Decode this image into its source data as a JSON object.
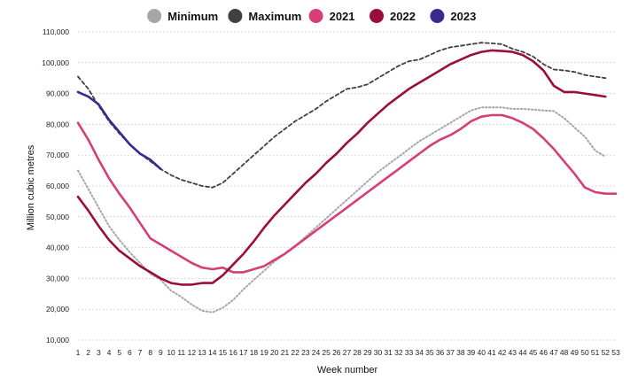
{
  "chart_data": {
    "type": "line",
    "xlabel": "Week number",
    "ylabel": "Million cubic metres",
    "ylim": [
      10000,
      110000
    ],
    "yticks": [
      10000,
      20000,
      30000,
      40000,
      50000,
      60000,
      70000,
      80000,
      90000,
      100000,
      110000
    ],
    "ytick_labels": [
      "10,000",
      "20,000",
      "30,000",
      "40,000",
      "50,000",
      "60,000",
      "70,000",
      "80,000",
      "90,000",
      "100,000",
      "110,000"
    ],
    "xlim": [
      1,
      53
    ],
    "x": [
      1,
      2,
      3,
      4,
      5,
      6,
      7,
      8,
      9,
      10,
      11,
      12,
      13,
      14,
      15,
      16,
      17,
      18,
      19,
      20,
      21,
      22,
      23,
      24,
      25,
      26,
      27,
      28,
      29,
      30,
      31,
      32,
      33,
      34,
      35,
      36,
      37,
      38,
      39,
      40,
      41,
      42,
      43,
      44,
      45,
      46,
      47,
      48,
      49,
      50,
      51,
      52,
      53
    ],
    "grid": "horizontal dashed",
    "legend_position": "top-center",
    "series": [
      {
        "name": "Minimum",
        "color": "#a6a6a6",
        "style": "dotted",
        "x": [
          1,
          2,
          3,
          4,
          5,
          6,
          7,
          8,
          9,
          10,
          11,
          12,
          13,
          14,
          15,
          16,
          17,
          18,
          19,
          20,
          21,
          22,
          23,
          24,
          25,
          26,
          27,
          28,
          29,
          30,
          31,
          32,
          33,
          34,
          35,
          36,
          37,
          38,
          39,
          40,
          41,
          42,
          43,
          44,
          45,
          46,
          47,
          48,
          49,
          50,
          51,
          52
        ],
        "values": [
          65000,
          59000,
          53000,
          47000,
          42500,
          38500,
          35000,
          31500,
          29500,
          26000,
          24000,
          21500,
          19500,
          19000,
          20500,
          23000,
          26500,
          29500,
          32500,
          35500,
          38000,
          40500,
          43500,
          46500,
          49500,
          52500,
          55500,
          58500,
          61500,
          64500,
          67000,
          69500,
          72000,
          74500,
          76500,
          78500,
          80500,
          82500,
          84500,
          85500,
          85500,
          85500,
          85000,
          85000,
          84800,
          84500,
          84300,
          82000,
          79000,
          76000,
          71500,
          69500
        ]
      },
      {
        "name": "Maximum",
        "color": "#404040",
        "style": "dashed",
        "x": [
          1,
          2,
          3,
          4,
          5,
          6,
          7,
          8,
          9,
          10,
          11,
          12,
          13,
          14,
          15,
          16,
          17,
          18,
          19,
          20,
          21,
          22,
          23,
          24,
          25,
          26,
          27,
          28,
          29,
          30,
          31,
          32,
          33,
          34,
          35,
          36,
          37,
          38,
          39,
          40,
          41,
          42,
          43,
          44,
          45,
          46,
          47,
          48,
          49,
          50,
          51,
          52
        ],
        "values": [
          95500,
          91500,
          86000,
          81000,
          77000,
          73500,
          70500,
          68000,
          65500,
          63500,
          62000,
          61000,
          60000,
          59500,
          61000,
          64000,
          67000,
          70000,
          73000,
          76000,
          78500,
          81000,
          83000,
          85000,
          87500,
          89500,
          91500,
          92000,
          93000,
          95000,
          97000,
          99000,
          100500,
          101000,
          102500,
          104000,
          105000,
          105500,
          106000,
          106500,
          106300,
          106000,
          104500,
          103500,
          102000,
          99500,
          97800,
          97500,
          97000,
          96000,
          95500,
          95000
        ]
      },
      {
        "name": "2021",
        "color": "#d63e78",
        "style": "solid",
        "x": [
          1,
          2,
          3,
          4,
          5,
          6,
          7,
          8,
          9,
          10,
          11,
          12,
          13,
          14,
          15,
          16,
          17,
          18,
          19,
          20,
          21,
          22,
          23,
          24,
          25,
          26,
          27,
          28,
          29,
          30,
          31,
          32,
          33,
          34,
          35,
          36,
          37,
          38,
          39,
          40,
          41,
          42,
          43,
          44,
          45,
          46,
          47,
          48,
          49,
          50,
          51,
          52,
          53
        ],
        "values": [
          80500,
          75000,
          68500,
          62500,
          57500,
          53000,
          48000,
          43000,
          41000,
          39000,
          37000,
          35000,
          33500,
          33000,
          33500,
          32000,
          32000,
          33000,
          34000,
          36000,
          38000,
          40500,
          43000,
          45500,
          48000,
          50500,
          53000,
          55500,
          58000,
          60500,
          63000,
          65500,
          68000,
          70500,
          73000,
          75000,
          76500,
          78500,
          81000,
          82500,
          83000,
          83000,
          82000,
          80500,
          78500,
          75500,
          72000,
          68000,
          64000,
          59500,
          58000,
          57500,
          57500
        ]
      },
      {
        "name": "2022",
        "color": "#9b0d3a",
        "style": "solid",
        "x": [
          1,
          2,
          3,
          4,
          5,
          6,
          7,
          8,
          9,
          10,
          11,
          12,
          13,
          14,
          15,
          16,
          17,
          18,
          19,
          20,
          21,
          22,
          23,
          24,
          25,
          26,
          27,
          28,
          29,
          30,
          31,
          32,
          33,
          34,
          35,
          36,
          37,
          38,
          39,
          40,
          41,
          42,
          43,
          44,
          45,
          46,
          47,
          48,
          49,
          50,
          51,
          52
        ],
        "values": [
          56500,
          52000,
          47000,
          42500,
          39000,
          36500,
          34000,
          32000,
          30000,
          28500,
          28000,
          28000,
          28500,
          28500,
          31000,
          34500,
          38000,
          42000,
          46500,
          50500,
          54000,
          57500,
          61000,
          64000,
          67500,
          70500,
          74000,
          77000,
          80500,
          83500,
          86500,
          89000,
          91500,
          93500,
          95500,
          97500,
          99500,
          101000,
          102500,
          103500,
          104000,
          103800,
          103500,
          102500,
          100500,
          97500,
          92500,
          90500,
          90500,
          90000,
          89500,
          89000
        ]
      },
      {
        "name": "2023",
        "color": "#3b2a8e",
        "style": "solid",
        "x": [
          1,
          2,
          3,
          4,
          5,
          6,
          7,
          8,
          9
        ],
        "values": [
          90500,
          89000,
          86500,
          81500,
          77500,
          73500,
          70500,
          68500,
          65500
        ]
      }
    ]
  }
}
